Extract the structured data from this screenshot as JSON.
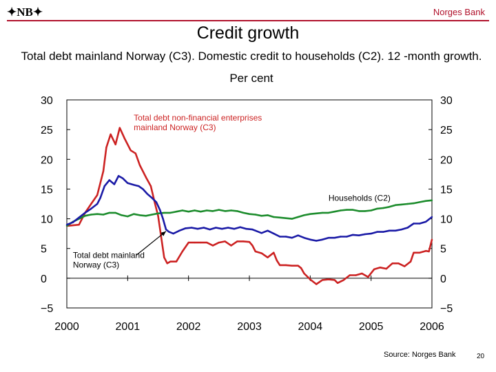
{
  "header": {
    "logo_text": "✦NB✦",
    "bank_name": "Norges Bank"
  },
  "title": "Credit growth",
  "subtitle": "Total debt mainland Norway (C3). Domestic credit to households (C2). 12 -month growth. Per cent",
  "footer": {
    "source": "Source: Norges Bank",
    "page_number": "20"
  },
  "chart_data": {
    "type": "line",
    "title": "",
    "xlabel": "",
    "ylabel": "",
    "xlim": [
      2000.0,
      2006.0
    ],
    "ylim": [
      -5,
      30
    ],
    "x_ticks": [
      "2000",
      "2001",
      "2002",
      "2003",
      "2004",
      "2005",
      "2006"
    ],
    "y_ticks": [
      -5,
      0,
      5,
      10,
      15,
      20,
      25,
      30
    ],
    "grid": false,
    "y_axis_both_sides": true,
    "series": [
      {
        "name": "Total debt non-financial enterprises mainland Norway (C3)",
        "color": "#cc2222",
        "points": [
          [
            2000.0,
            8.8
          ],
          [
            2000.2,
            9.0
          ],
          [
            2000.3,
            11.0
          ],
          [
            2000.4,
            12.5
          ],
          [
            2000.5,
            14.0
          ],
          [
            2000.6,
            18.0
          ],
          [
            2000.65,
            22.0
          ],
          [
            2000.72,
            24.2
          ],
          [
            2000.8,
            22.5
          ],
          [
            2000.87,
            25.3
          ],
          [
            2000.95,
            23.5
          ],
          [
            2001.05,
            21.5
          ],
          [
            2001.13,
            21.0
          ],
          [
            2001.2,
            19.0
          ],
          [
            2001.3,
            17.0
          ],
          [
            2001.38,
            15.5
          ],
          [
            2001.45,
            12.5
          ],
          [
            2001.5,
            10.5
          ],
          [
            2001.55,
            7.0
          ],
          [
            2001.6,
            3.5
          ],
          [
            2001.65,
            2.5
          ],
          [
            2001.7,
            2.8
          ],
          [
            2001.8,
            2.8
          ],
          [
            2001.9,
            4.5
          ],
          [
            2002.0,
            6.0
          ],
          [
            2002.1,
            6.0
          ],
          [
            2002.2,
            6.0
          ],
          [
            2002.3,
            6.0
          ],
          [
            2002.4,
            5.5
          ],
          [
            2002.5,
            6.0
          ],
          [
            2002.6,
            6.2
          ],
          [
            2002.7,
            5.5
          ],
          [
            2002.8,
            6.2
          ],
          [
            2002.9,
            6.2
          ],
          [
            2003.0,
            6.1
          ],
          [
            2003.05,
            5.5
          ],
          [
            2003.1,
            4.5
          ],
          [
            2003.2,
            4.2
          ],
          [
            2003.3,
            3.5
          ],
          [
            2003.4,
            4.3
          ],
          [
            2003.45,
            3.0
          ],
          [
            2003.5,
            2.2
          ],
          [
            2003.6,
            2.2
          ],
          [
            2003.7,
            2.1
          ],
          [
            2003.8,
            2.1
          ],
          [
            2003.85,
            1.7
          ],
          [
            2003.9,
            0.8
          ],
          [
            2004.0,
            -0.2
          ],
          [
            2004.1,
            -1.0
          ],
          [
            2004.2,
            -0.3
          ],
          [
            2004.3,
            -0.2
          ],
          [
            2004.4,
            -0.3
          ],
          [
            2004.45,
            -0.8
          ],
          [
            2004.55,
            -0.3
          ],
          [
            2004.65,
            0.5
          ],
          [
            2004.75,
            0.5
          ],
          [
            2004.85,
            0.8
          ],
          [
            2004.95,
            0.2
          ],
          [
            2005.05,
            1.5
          ],
          [
            2005.15,
            1.8
          ],
          [
            2005.25,
            1.6
          ],
          [
            2005.35,
            2.5
          ],
          [
            2005.45,
            2.5
          ],
          [
            2005.55,
            2.0
          ],
          [
            2005.65,
            2.8
          ],
          [
            2005.7,
            4.3
          ],
          [
            2005.8,
            4.3
          ],
          [
            2005.9,
            4.6
          ],
          [
            2005.95,
            4.5
          ],
          [
            2006.0,
            6.5
          ]
        ]
      },
      {
        "name": "Households (C2)",
        "color": "#1c8c2c",
        "points": [
          [
            2000.0,
            8.8
          ],
          [
            2000.1,
            9.5
          ],
          [
            2000.2,
            10.0
          ],
          [
            2000.3,
            10.5
          ],
          [
            2000.4,
            10.7
          ],
          [
            2000.5,
            10.8
          ],
          [
            2000.6,
            10.7
          ],
          [
            2000.7,
            11.0
          ],
          [
            2000.8,
            11.0
          ],
          [
            2000.9,
            10.6
          ],
          [
            2001.0,
            10.4
          ],
          [
            2001.1,
            10.8
          ],
          [
            2001.2,
            10.6
          ],
          [
            2001.3,
            10.5
          ],
          [
            2001.4,
            10.7
          ],
          [
            2001.5,
            10.9
          ],
          [
            2001.6,
            11.0
          ],
          [
            2001.7,
            11.0
          ],
          [
            2001.8,
            11.2
          ],
          [
            2001.9,
            11.4
          ],
          [
            2002.0,
            11.2
          ],
          [
            2002.1,
            11.4
          ],
          [
            2002.2,
            11.2
          ],
          [
            2002.3,
            11.4
          ],
          [
            2002.4,
            11.3
          ],
          [
            2002.5,
            11.5
          ],
          [
            2002.6,
            11.3
          ],
          [
            2002.7,
            11.4
          ],
          [
            2002.8,
            11.3
          ],
          [
            2002.9,
            11.0
          ],
          [
            2003.0,
            10.8
          ],
          [
            2003.1,
            10.7
          ],
          [
            2003.2,
            10.5
          ],
          [
            2003.3,
            10.6
          ],
          [
            2003.4,
            10.3
          ],
          [
            2003.5,
            10.2
          ],
          [
            2003.6,
            10.1
          ],
          [
            2003.7,
            10.0
          ],
          [
            2003.8,
            10.3
          ],
          [
            2003.9,
            10.6
          ],
          [
            2004.0,
            10.8
          ],
          [
            2004.1,
            10.9
          ],
          [
            2004.2,
            11.0
          ],
          [
            2004.3,
            11.0
          ],
          [
            2004.4,
            11.2
          ],
          [
            2004.5,
            11.4
          ],
          [
            2004.6,
            11.5
          ],
          [
            2004.7,
            11.5
          ],
          [
            2004.8,
            11.3
          ],
          [
            2004.9,
            11.3
          ],
          [
            2005.0,
            11.4
          ],
          [
            2005.1,
            11.7
          ],
          [
            2005.2,
            11.8
          ],
          [
            2005.3,
            12.0
          ],
          [
            2005.4,
            12.3
          ],
          [
            2005.5,
            12.4
          ],
          [
            2005.6,
            12.5
          ],
          [
            2005.7,
            12.6
          ],
          [
            2005.8,
            12.8
          ],
          [
            2005.9,
            13.0
          ],
          [
            2006.0,
            13.1
          ]
        ]
      },
      {
        "name": "",
        "color": "#1a1aa6",
        "points": [
          [
            2000.0,
            9.0
          ],
          [
            2000.1,
            9.4
          ],
          [
            2000.2,
            10.2
          ],
          [
            2000.3,
            11.0
          ],
          [
            2000.4,
            11.7
          ],
          [
            2000.5,
            12.5
          ],
          [
            2000.55,
            13.5
          ],
          [
            2000.62,
            15.5
          ],
          [
            2000.7,
            16.5
          ],
          [
            2000.78,
            15.8
          ],
          [
            2000.85,
            17.2
          ],
          [
            2000.92,
            16.8
          ],
          [
            2001.0,
            16.0
          ],
          [
            2001.1,
            15.7
          ],
          [
            2001.18,
            15.5
          ],
          [
            2001.25,
            15.0
          ],
          [
            2001.32,
            14.2
          ],
          [
            2001.4,
            13.5
          ],
          [
            2001.47,
            12.8
          ],
          [
            2001.53,
            11.5
          ],
          [
            2001.58,
            10.0
          ],
          [
            2001.63,
            8.2
          ],
          [
            2001.68,
            7.8
          ],
          [
            2001.75,
            7.5
          ],
          [
            2001.85,
            8.0
          ],
          [
            2001.95,
            8.4
          ],
          [
            2002.05,
            8.5
          ],
          [
            2002.15,
            8.3
          ],
          [
            2002.25,
            8.5
          ],
          [
            2002.35,
            8.2
          ],
          [
            2002.45,
            8.5
          ],
          [
            2002.55,
            8.3
          ],
          [
            2002.65,
            8.5
          ],
          [
            2002.75,
            8.3
          ],
          [
            2002.85,
            8.6
          ],
          [
            2002.95,
            8.3
          ],
          [
            2003.05,
            8.2
          ],
          [
            2003.1,
            8.0
          ],
          [
            2003.2,
            7.6
          ],
          [
            2003.3,
            8.0
          ],
          [
            2003.4,
            7.5
          ],
          [
            2003.5,
            7.0
          ],
          [
            2003.6,
            7.0
          ],
          [
            2003.7,
            6.8
          ],
          [
            2003.8,
            7.2
          ],
          [
            2003.9,
            6.8
          ],
          [
            2004.0,
            6.5
          ],
          [
            2004.1,
            6.3
          ],
          [
            2004.2,
            6.5
          ],
          [
            2004.3,
            6.8
          ],
          [
            2004.4,
            6.8
          ],
          [
            2004.5,
            7.0
          ],
          [
            2004.6,
            7.0
          ],
          [
            2004.7,
            7.3
          ],
          [
            2004.8,
            7.2
          ],
          [
            2004.9,
            7.4
          ],
          [
            2005.0,
            7.5
          ],
          [
            2005.1,
            7.8
          ],
          [
            2005.2,
            7.8
          ],
          [
            2005.3,
            8.0
          ],
          [
            2005.4,
            8.0
          ],
          [
            2005.5,
            8.2
          ],
          [
            2005.6,
            8.5
          ],
          [
            2005.7,
            9.2
          ],
          [
            2005.8,
            9.2
          ],
          [
            2005.9,
            9.5
          ],
          [
            2006.0,
            10.3
          ]
        ]
      }
    ],
    "annotations": [
      {
        "text_lines": [
          "Total debt non-financial enterprises",
          "mainland Norway (C3)"
        ],
        "color": "#cc2222",
        "x": 2001.1,
        "y": 26.5,
        "arrow": false
      },
      {
        "text_lines": [
          "Households (C2)"
        ],
        "color": "#000000",
        "x": 2004.3,
        "y": 13.0,
        "arrow": false
      },
      {
        "text_lines": [
          "Total debt mainland",
          "Norway (C3)"
        ],
        "color": "#000000",
        "x": 2000.1,
        "y": 3.4,
        "arrow": true,
        "arrow_to": [
          2001.63,
          7.9
        ]
      }
    ]
  }
}
